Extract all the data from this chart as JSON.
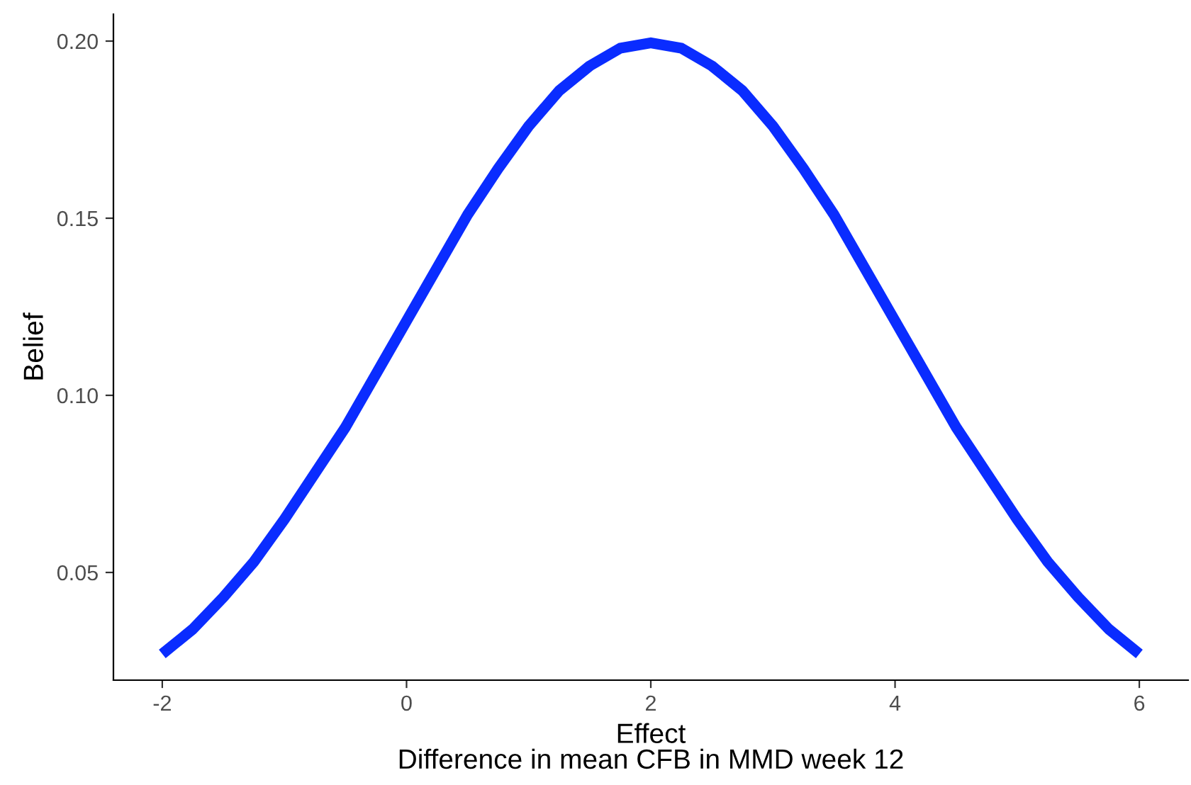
{
  "chart_data": {
    "type": "line",
    "xlabel": "Effect\nDifference in mean CFB in MMD week 12",
    "ylabel": "Belief",
    "x": [
      -2,
      -1.75,
      -1.5,
      -1.25,
      -1,
      -0.75,
      -0.5,
      -0.25,
      0,
      0.25,
      0.5,
      0.75,
      1,
      1.25,
      1.5,
      1.75,
      2,
      2.25,
      2.5,
      2.75,
      3,
      3.25,
      3.5,
      3.75,
      4,
      4.25,
      4.5,
      4.75,
      5,
      5.25,
      5.5,
      5.75,
      6
    ],
    "series": [
      {
        "color": "#0a2cff",
        "values": [
          0.027,
          0.034,
          0.043,
          0.053,
          0.065,
          0.078,
          0.091,
          0.106,
          0.121,
          0.136,
          0.151,
          0.164,
          0.176,
          0.186,
          0.193,
          0.198,
          0.1995,
          0.198,
          0.193,
          0.186,
          0.176,
          0.164,
          0.151,
          0.136,
          0.121,
          0.106,
          0.091,
          0.078,
          0.065,
          0.053,
          0.043,
          0.034,
          0.027
        ]
      }
    ],
    "xlim": [
      -2.4,
      6.4
    ],
    "ylim": [
      0.0196,
      0.2076
    ],
    "xticks": [
      -2,
      0,
      2,
      4,
      6
    ],
    "yticks": [
      {
        "value": 0.05,
        "label": "0.05"
      },
      {
        "value": 0.1,
        "label": "0.10"
      },
      {
        "value": 0.15,
        "label": "0.15"
      },
      {
        "value": 0.2,
        "label": "0.20"
      }
    ],
    "grid": false,
    "legend": false,
    "line_style": "solid",
    "marker": "none"
  }
}
